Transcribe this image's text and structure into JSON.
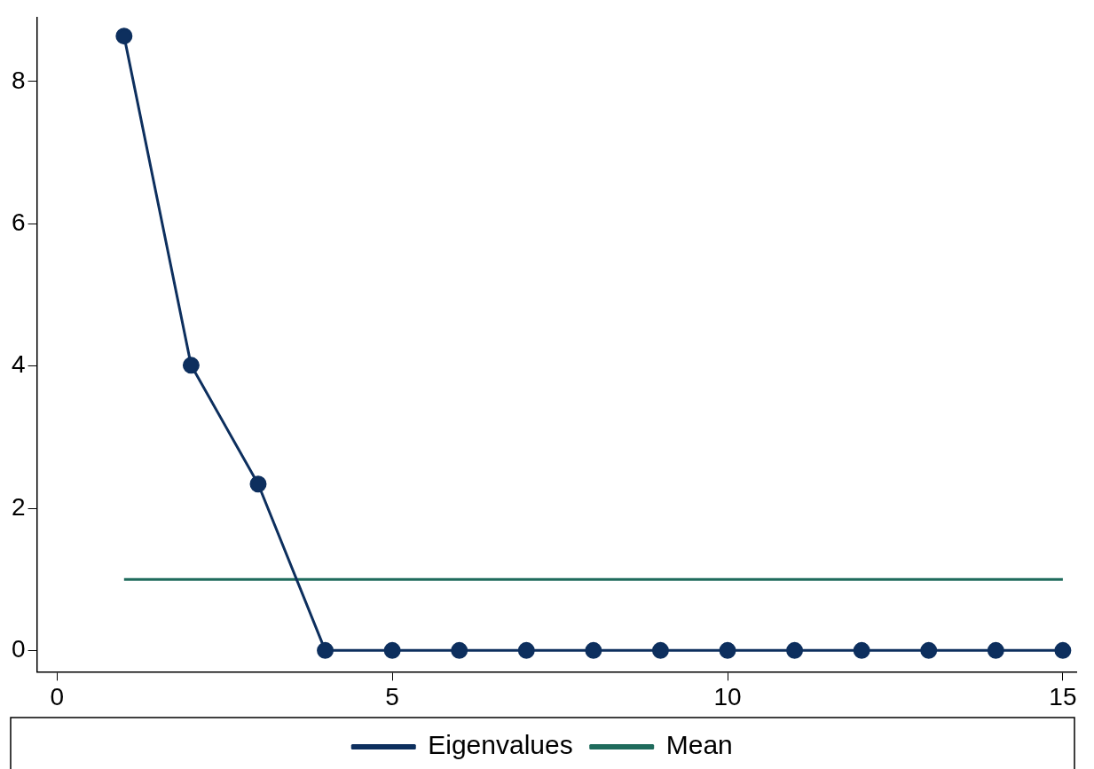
{
  "chart_data": {
    "type": "line",
    "x": [
      1,
      2,
      3,
      4,
      5,
      6,
      7,
      8,
      9,
      10,
      11,
      12,
      13,
      14,
      15
    ],
    "series": [
      {
        "name": "Eigenvalues",
        "color": "#0d2f5e",
        "values": [
          8.64,
          4.01,
          2.34,
          0,
          0,
          0,
          0,
          0,
          0,
          0,
          0,
          0,
          0,
          0,
          0
        ],
        "marker": "circle"
      },
      {
        "name": "Mean",
        "color": "#1f6b5c",
        "x": [
          1,
          15
        ],
        "values": [
          1,
          1
        ],
        "marker": "none"
      }
    ],
    "xlim": [
      -0.3,
      15.2
    ],
    "xticks": [
      0,
      5,
      10,
      15
    ],
    "ylim": [
      -0.3,
      8.9
    ],
    "yticks": [
      0,
      2,
      4,
      6,
      8
    ],
    "grid": false,
    "legend": "bottom",
    "line_style": "solid"
  }
}
